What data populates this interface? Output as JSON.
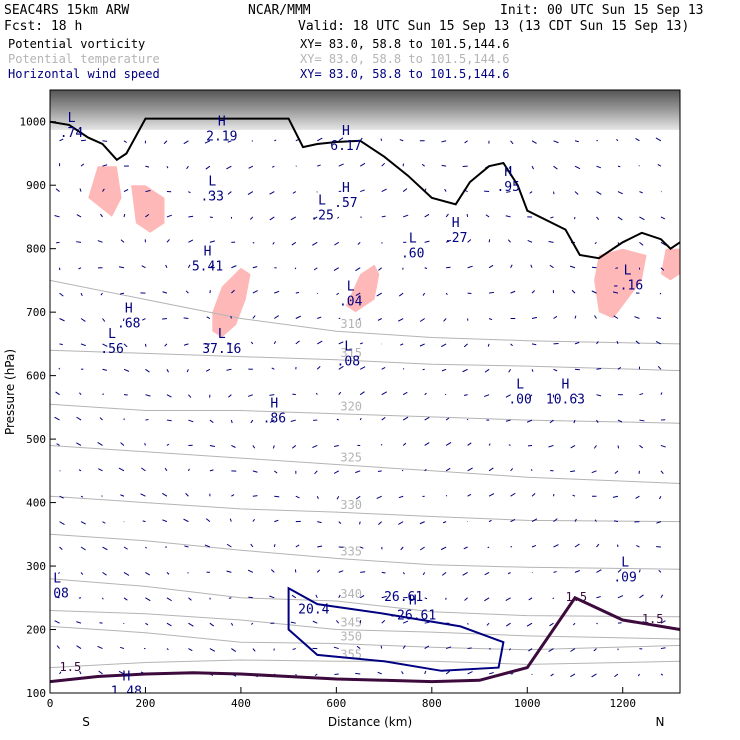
{
  "header": {
    "model": "SEAC4RS 15km ARW",
    "center": "NCAR/MMM",
    "init": "Init: 00 UTC Sun 15 Sep 13",
    "fcst": "Fcst:    18 h",
    "valid": "Valid: 18 UTC Sun 15 Sep 13 (13 CDT Sun 15 Sep 13)",
    "fields": [
      {
        "name": "Potential vorticity",
        "xy": "XY=  83.0, 58.8 to 101.5,144.6",
        "color": "#000000"
      },
      {
        "name": "Potential temperature",
        "xy": "XY=  83.0, 58.8 to 101.5,144.6",
        "color": "#b4b4b4"
      },
      {
        "name": "Horizontal wind speed",
        "xy": "XY=  83.0, 58.8 to 101.5,144.6",
        "color": "#000080"
      }
    ]
  },
  "chart_data": {
    "type": "cross-section",
    "xlabel": "Distance (km)",
    "ylabel": "Pressure (hPa)",
    "xlim": [
      0,
      1320
    ],
    "ylim": [
      1050,
      100
    ],
    "x_ticks": [
      "0",
      "200",
      "400",
      "600",
      "800",
      "1000",
      "1200"
    ],
    "y_ticks": [
      "100",
      "200",
      "300",
      "400",
      "500",
      "600",
      "700",
      "800",
      "900",
      "1000"
    ],
    "endpoints": {
      "left": "S",
      "right": "N"
    },
    "colors": {
      "pv": "#3c0a3c",
      "theta": "#b4b4b4",
      "wind": "#000080",
      "shade": "#ffb8b8",
      "terrain": "#000000"
    },
    "theta_contours": [
      {
        "label": "355",
        "points": [
          [
            0,
            140
          ],
          [
            200,
            148
          ],
          [
            400,
            152
          ],
          [
            600,
            150
          ],
          [
            800,
            150
          ],
          [
            1000,
            145
          ],
          [
            1320,
            150
          ]
        ]
      },
      {
        "label": "350",
        "points": [
          [
            0,
            205
          ],
          [
            200,
            195
          ],
          [
            400,
            180
          ],
          [
            600,
            178
          ],
          [
            800,
            172
          ],
          [
            1000,
            168
          ],
          [
            1320,
            175
          ]
        ]
      },
      {
        "label": "345",
        "points": [
          [
            0,
            230
          ],
          [
            200,
            225
          ],
          [
            400,
            215
          ],
          [
            600,
            200
          ],
          [
            800,
            196
          ],
          [
            1000,
            190
          ],
          [
            1320,
            185
          ]
        ]
      },
      {
        "label": "340",
        "points": [
          [
            0,
            280
          ],
          [
            200,
            268
          ],
          [
            400,
            250
          ],
          [
            600,
            245
          ],
          [
            800,
            228
          ],
          [
            1000,
            222
          ],
          [
            1320,
            220
          ]
        ]
      },
      {
        "label": "335",
        "points": [
          [
            0,
            350
          ],
          [
            200,
            340
          ],
          [
            400,
            325
          ],
          [
            600,
            312
          ],
          [
            800,
            302
          ],
          [
            1000,
            298
          ],
          [
            1320,
            295
          ]
        ]
      },
      {
        "label": "330",
        "points": [
          [
            0,
            410
          ],
          [
            200,
            400
          ],
          [
            400,
            390
          ],
          [
            600,
            385
          ],
          [
            800,
            378
          ],
          [
            1000,
            372
          ],
          [
            1320,
            370
          ]
        ]
      },
      {
        "label": "325",
        "points": [
          [
            0,
            490
          ],
          [
            200,
            480
          ],
          [
            400,
            470
          ],
          [
            600,
            460
          ],
          [
            800,
            450
          ],
          [
            1000,
            440
          ],
          [
            1320,
            430
          ]
        ]
      },
      {
        "label": "320",
        "points": [
          [
            0,
            555
          ],
          [
            200,
            545
          ],
          [
            400,
            545
          ],
          [
            600,
            540
          ],
          [
            800,
            535
          ],
          [
            1000,
            530
          ],
          [
            1320,
            525
          ]
        ]
      },
      {
        "label": "315",
        "points": [
          [
            0,
            640
          ],
          [
            200,
            635
          ],
          [
            400,
            630
          ],
          [
            600,
            625
          ],
          [
            800,
            618
          ],
          [
            1000,
            615
          ],
          [
            1320,
            608
          ]
        ]
      },
      {
        "label": "310",
        "points": [
          [
            0,
            750
          ],
          [
            200,
            720
          ],
          [
            400,
            690
          ],
          [
            600,
            670
          ],
          [
            800,
            660
          ],
          [
            1000,
            655
          ],
          [
            1320,
            650
          ]
        ]
      }
    ],
    "pv_1p5_line": {
      "label": "1.5",
      "points": [
        [
          0,
          118
        ],
        [
          100,
          126
        ],
        [
          200,
          130
        ],
        [
          300,
          132
        ],
        [
          400,
          130
        ],
        [
          500,
          126
        ],
        [
          600,
          122
        ],
        [
          700,
          120
        ],
        [
          800,
          118
        ],
        [
          900,
          120
        ],
        [
          1000,
          140
        ],
        [
          1100,
          250
        ],
        [
          1200,
          215
        ],
        [
          1320,
          200
        ]
      ]
    },
    "wind_max_contour": {
      "labels": [
        "20.4",
        "26.61"
      ],
      "points": [
        [
          500,
          265
        ],
        [
          560,
          240
        ],
        [
          700,
          225
        ],
        [
          860,
          205
        ],
        [
          950,
          180
        ],
        [
          940,
          140
        ],
        [
          820,
          135
        ],
        [
          700,
          150
        ],
        [
          560,
          160
        ],
        [
          500,
          200
        ]
      ]
    },
    "highs_lows": [
      {
        "kind": "L",
        "value": ".08",
        "x": 15,
        "p": 265
      },
      {
        "kind": "H",
        "value": "1.48",
        "x": 160,
        "p": 110
      },
      {
        "kind": "H",
        "value": "-26.61",
        "x": 760,
        "p": 230
      },
      {
        "kind": "L",
        "value": ".09",
        "x": 1205,
        "p": 290
      },
      {
        "kind": "H",
        "value": ".86",
        "x": 470,
        "p": 540
      },
      {
        "kind": "L",
        "value": ".00",
        "x": 985,
        "p": 570
      },
      {
        "kind": "H",
        "value": "10.63",
        "x": 1080,
        "p": 570
      },
      {
        "kind": "L",
        "value": ".56",
        "x": 130,
        "p": 650
      },
      {
        "kind": "H",
        "value": ".68",
        "x": 165,
        "p": 690
      },
      {
        "kind": "L",
        "value": "37.16",
        "x": 360,
        "p": 650
      },
      {
        "kind": "L",
        "value": ".08",
        "x": 625,
        "p": 630
      },
      {
        "kind": "L",
        "value": ".04",
        "x": 630,
        "p": 725
      },
      {
        "kind": "H",
        "value": "5.41",
        "x": 330,
        "p": 780
      },
      {
        "kind": "L",
        "value": ".60",
        "x": 760,
        "p": 800
      },
      {
        "kind": "H",
        "value": ".27",
        "x": 850,
        "p": 825
      },
      {
        "kind": "L",
        "value": "-.16",
        "x": 1210,
        "p": 750
      },
      {
        "kind": "L",
        "value": ".25",
        "x": 570,
        "p": 860
      },
      {
        "kind": "L",
        "value": ".33",
        "x": 340,
        "p": 890
      },
      {
        "kind": "H",
        "value": ".57",
        "x": 620,
        "p": 880
      },
      {
        "kind": "H",
        "value": ".95",
        "x": 960,
        "p": 905
      },
      {
        "kind": "L",
        "value": ".74",
        "x": 45,
        "p": 990
      },
      {
        "kind": "H",
        "value": "2.19",
        "x": 360,
        "p": 985
      },
      {
        "kind": "H",
        "value": "6.17",
        "x": 620,
        "p": 970
      }
    ],
    "terrain": [
      [
        0,
        1000
      ],
      [
        40,
        995
      ],
      [
        80,
        975
      ],
      [
        110,
        965
      ],
      [
        140,
        940
      ],
      [
        160,
        950
      ],
      [
        200,
        1005
      ],
      [
        500,
        1005
      ],
      [
        530,
        960
      ],
      [
        560,
        965
      ],
      [
        600,
        968
      ],
      [
        650,
        970
      ],
      [
        700,
        945
      ],
      [
        750,
        915
      ],
      [
        800,
        880
      ],
      [
        850,
        870
      ],
      [
        880,
        905
      ],
      [
        920,
        930
      ],
      [
        950,
        935
      ],
      [
        980,
        900
      ],
      [
        1000,
        860
      ],
      [
        1080,
        830
      ],
      [
        1110,
        790
      ],
      [
        1150,
        785
      ],
      [
        1200,
        810
      ],
      [
        1240,
        825
      ],
      [
        1280,
        815
      ],
      [
        1300,
        800
      ],
      [
        1320,
        810
      ]
    ],
    "pv_shaded_regions": [
      [
        [
          80,
          880
        ],
        [
          130,
          850
        ],
        [
          150,
          880
        ],
        [
          140,
          930
        ],
        [
          100,
          930
        ]
      ],
      [
        [
          180,
          840
        ],
        [
          210,
          825
        ],
        [
          240,
          840
        ],
        [
          240,
          880
        ],
        [
          200,
          900
        ],
        [
          170,
          900
        ]
      ],
      [
        [
          340,
          670
        ],
        [
          360,
          660
        ],
        [
          390,
          680
        ],
        [
          410,
          720
        ],
        [
          420,
          760
        ],
        [
          400,
          770
        ],
        [
          360,
          740
        ],
        [
          340,
          700
        ]
      ],
      [
        [
          620,
          710
        ],
        [
          640,
          700
        ],
        [
          680,
          720
        ],
        [
          690,
          760
        ],
        [
          680,
          775
        ],
        [
          650,
          760
        ]
      ],
      [
        [
          1150,
          700
        ],
        [
          1180,
          690
        ],
        [
          1210,
          720
        ],
        [
          1240,
          750
        ],
        [
          1250,
          790
        ],
        [
          1200,
          800
        ],
        [
          1150,
          790
        ],
        [
          1140,
          750
        ]
      ],
      [
        [
          1280,
          760
        ],
        [
          1300,
          750
        ],
        [
          1320,
          760
        ],
        [
          1320,
          800
        ],
        [
          1290,
          800
        ]
      ]
    ]
  }
}
